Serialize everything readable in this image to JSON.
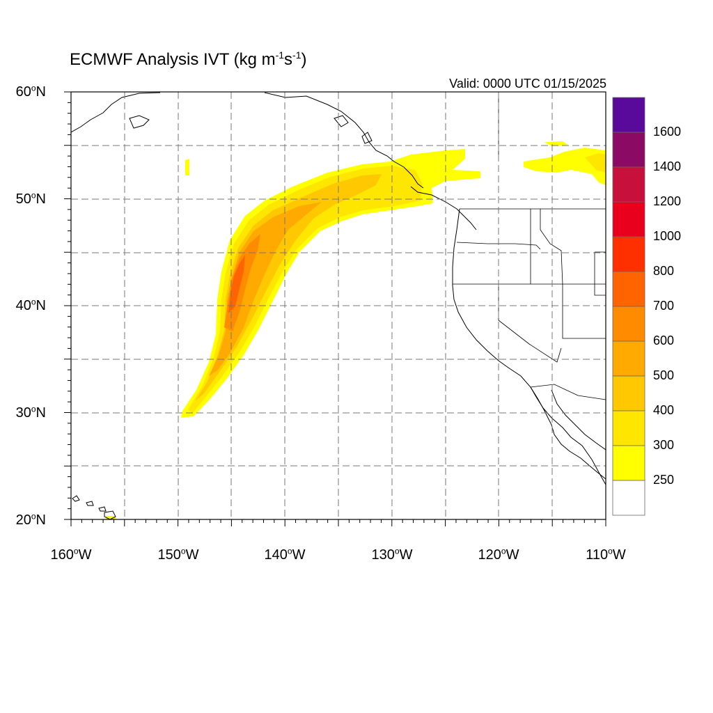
{
  "figure": {
    "title_main": "ECMWF Analysis IVT (kg m",
    "title_exp1": "-1",
    "title_mid": "s",
    "title_exp2": "-1",
    "title_end": ")",
    "valid_time": "Valid: 0000 UTC 01/15/2025",
    "degree_symbol": "o"
  },
  "axes": {
    "lat_ticks": [
      {
        "num": "60",
        "hem": "N"
      },
      {
        "num": "50",
        "hem": "N"
      },
      {
        "num": "40",
        "hem": "N"
      },
      {
        "num": "30",
        "hem": "N"
      },
      {
        "num": "20",
        "hem": "N"
      }
    ],
    "lon_ticks": [
      {
        "num": "160",
        "hem": "W"
      },
      {
        "num": "150",
        "hem": "W"
      },
      {
        "num": "140",
        "hem": "W"
      },
      {
        "num": "130",
        "hem": "W"
      },
      {
        "num": "120",
        "hem": "W"
      },
      {
        "num": "110",
        "hem": "W"
      }
    ],
    "lat_range": [
      20,
      60
    ],
    "lon_range": [
      -160,
      -110
    ],
    "gridlines": "dashed every 5 degrees"
  },
  "colorbar": {
    "labels": [
      "1600",
      "1400",
      "1200",
      "1000",
      "800",
      "700",
      "600",
      "500",
      "400",
      "300",
      "250"
    ],
    "colors": [
      "#5a0a9a",
      "#8b0a64",
      "#c8103c",
      "#e8001c",
      "#ff3000",
      "#ff6400",
      "#ff8c00",
      "#ffaa00",
      "#ffc800",
      "#ffe600",
      "#ffff00",
      "#ffffff"
    ]
  },
  "chart_data": {
    "type": "heatmap",
    "variable": "IVT",
    "units": "kg m-1 s-1",
    "features": [
      {
        "region": "atmospheric river core",
        "lat": 42,
        "lon": -144.5,
        "level": "700-800"
      },
      {
        "region": "atmospheric river body",
        "lat_range": [
          30,
          53
        ],
        "lon_range": [
          -150,
          -127
        ],
        "level": "300-600"
      },
      {
        "region": "plume landfall British Columbia",
        "lat_range": [
          49,
          54
        ],
        "lon_range": [
          -130,
          -121
        ],
        "level": "250-300"
      },
      {
        "region": "interior Canada patch",
        "lat_range": [
          52,
          55
        ],
        "lon_range": [
          -116,
          -110
        ],
        "level": "250-300"
      },
      {
        "region": "isolated patch",
        "lat": 53.5,
        "lon": -149.5,
        "level": "250-300"
      },
      {
        "region": "near Hawaii",
        "lat": 20.2,
        "lon": -156,
        "level": "250-300"
      }
    ]
  }
}
